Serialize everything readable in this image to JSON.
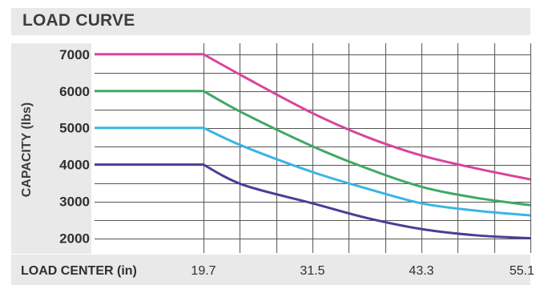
{
  "chart_data": {
    "type": "line",
    "title": "LOAD CURVE",
    "xlabel": "LOAD CENTER (in)",
    "ylabel": "CAPACITY (lbs)",
    "x_ticks": [
      "19.7",
      "31.5",
      "43.3",
      "55.1"
    ],
    "y_ticks": [
      "7000",
      "6000",
      "5000",
      "4000",
      "3000",
      "2000"
    ],
    "xlim": [
      7.9,
      55.1
    ],
    "ylim": [
      1600,
      7300
    ],
    "grid": true,
    "series": [
      {
        "color": "#d9449a",
        "x": [
          7.9,
          19.7,
          24,
          31.5,
          37.4,
          43.3,
          49.2,
          55.1
        ],
        "y": [
          7000,
          7000,
          6400,
          5400,
          4750,
          4250,
          3900,
          3600
        ]
      },
      {
        "color": "#3fa864",
        "x": [
          7.9,
          19.7,
          24,
          31.5,
          37.4,
          43.3,
          49.2,
          55.1
        ],
        "y": [
          6000,
          6000,
          5400,
          4500,
          3900,
          3400,
          3100,
          2900
        ]
      },
      {
        "color": "#3ab5e3",
        "x": [
          7.9,
          19.7,
          24,
          31.5,
          37.4,
          43.3,
          49.2,
          55.1
        ],
        "y": [
          5000,
          5000,
          4500,
          3800,
          3350,
          2950,
          2750,
          2620
        ]
      },
      {
        "color": "#4b3d94",
        "x": [
          7.9,
          19.7,
          24,
          31.5,
          37.4,
          43.3,
          49.2,
          55.1
        ],
        "y": [
          4000,
          4000,
          3450,
          2950,
          2550,
          2250,
          2080,
          2000
        ]
      }
    ]
  }
}
